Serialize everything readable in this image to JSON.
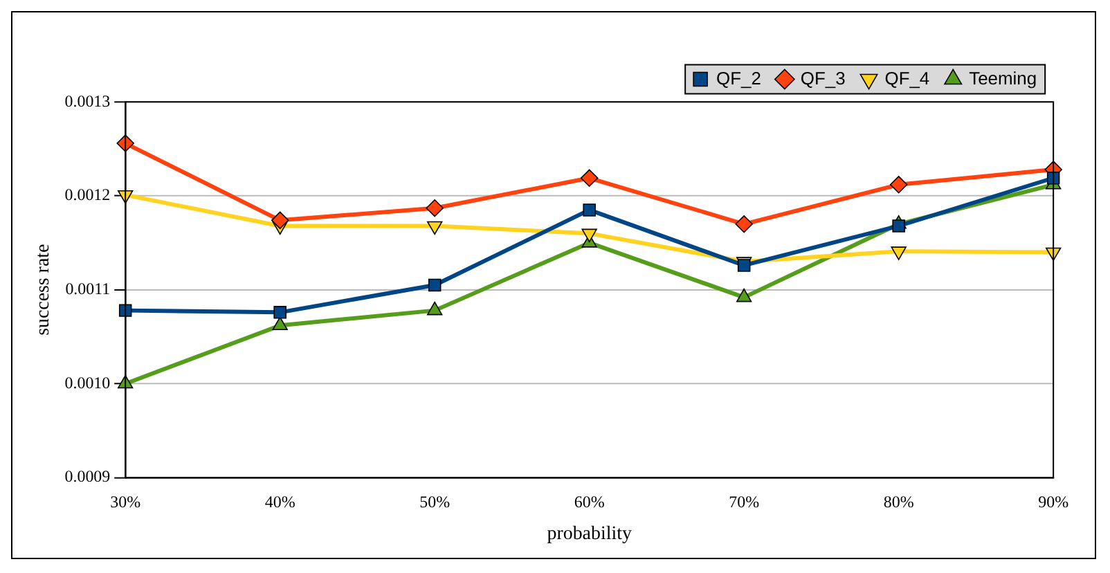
{
  "chart_data": {
    "type": "line",
    "xlabel": "probability",
    "ylabel": "success rate",
    "categories": [
      "30%",
      "40%",
      "50%",
      "60%",
      "70%",
      "80%",
      "90%"
    ],
    "ylim": [
      0.0009,
      0.0013
    ],
    "yticks": [
      {
        "value": 0.0009,
        "label": "0.0009"
      },
      {
        "value": 0.001,
        "label": "0.0010"
      },
      {
        "value": 0.0011,
        "label": "0.0011"
      },
      {
        "value": 0.0012,
        "label": "0.0012"
      },
      {
        "value": 0.0013,
        "label": "0.0013"
      }
    ],
    "grid": "y",
    "legend": "top right",
    "series": [
      {
        "name": "QF_2",
        "color": "#004586",
        "marker": "square",
        "values": [
          0.001078,
          0.001076,
          0.001105,
          0.001185,
          0.001126,
          0.001168,
          0.001219
        ]
      },
      {
        "name": "QF_3",
        "color": "#ff420e",
        "marker": "diamond",
        "values": [
          0.001256,
          0.001174,
          0.001187,
          0.001219,
          0.00117,
          0.001212,
          0.001228
        ]
      },
      {
        "name": "QF_4",
        "color": "#ffd320",
        "marker": "triangle-down",
        "values": [
          0.001201,
          0.001168,
          0.001168,
          0.00116,
          0.00113,
          0.001141,
          0.00114
        ]
      },
      {
        "name": "Teeming",
        "color": "#579d1c",
        "marker": "triangle",
        "values": [
          0.001,
          0.001062,
          0.001078,
          0.00115,
          0.001092,
          0.00117,
          0.001212
        ]
      }
    ]
  }
}
